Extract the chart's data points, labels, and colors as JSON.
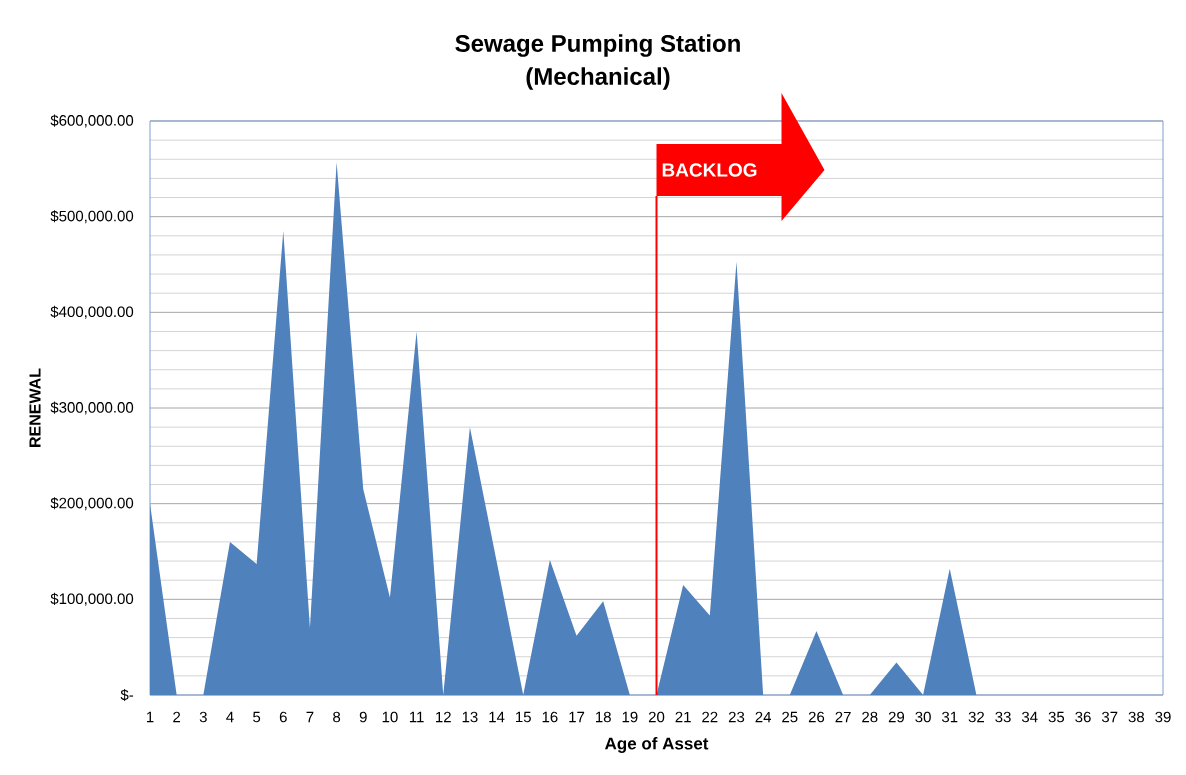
{
  "chart_data": {
    "type": "area",
    "title": "Sewage Pumping Station (Mechanical)",
    "xlabel": "Age of Asset",
    "ylabel": "RENEWAL",
    "x": [
      1,
      2,
      3,
      4,
      5,
      6,
      7,
      8,
      9,
      10,
      11,
      12,
      13,
      14,
      15,
      16,
      17,
      18,
      19,
      20,
      21,
      22,
      23,
      24,
      25,
      26,
      27,
      28,
      29,
      30,
      31,
      32,
      33,
      34,
      35,
      36,
      37,
      38,
      39
    ],
    "values": [
      200000,
      0,
      0,
      160000,
      137000,
      485000,
      70000,
      557000,
      215000,
      102000,
      380000,
      0,
      280000,
      140000,
      0,
      141000,
      62000,
      98000,
      0,
      0,
      115000,
      83000,
      453000,
      0,
      0,
      67000,
      0,
      0,
      34000,
      0,
      132000,
      0,
      0,
      0,
      0,
      0,
      0,
      0,
      0
    ],
    "color": "#4f81bd",
    "xlim": [
      1,
      39
    ],
    "ylim": [
      0,
      600000
    ],
    "xticks": [
      1,
      2,
      3,
      4,
      5,
      6,
      7,
      8,
      9,
      10,
      11,
      12,
      13,
      14,
      15,
      16,
      17,
      18,
      19,
      20,
      21,
      22,
      23,
      24,
      25,
      26,
      27,
      28,
      29,
      30,
      31,
      32,
      33,
      34,
      35,
      36,
      37,
      38,
      39
    ],
    "yticks": [
      {
        "value": 0,
        "label": "$-"
      },
      {
        "value": 20000,
        "label": null
      },
      {
        "value": 40000,
        "label": null
      },
      {
        "value": 60000,
        "label": null
      },
      {
        "value": 80000,
        "label": null
      },
      {
        "value": 100000,
        "label": "$100,000.00"
      },
      {
        "value": 120000,
        "label": null
      },
      {
        "value": 140000,
        "label": null
      },
      {
        "value": 160000,
        "label": null
      },
      {
        "value": 180000,
        "label": null
      },
      {
        "value": 200000,
        "label": "$200,000.00"
      },
      {
        "value": 220000,
        "label": null
      },
      {
        "value": 240000,
        "label": null
      },
      {
        "value": 260000,
        "label": null
      },
      {
        "value": 280000,
        "label": null
      },
      {
        "value": 300000,
        "label": "$300,000.00"
      },
      {
        "value": 320000,
        "label": null
      },
      {
        "value": 340000,
        "label": null
      },
      {
        "value": 360000,
        "label": null
      },
      {
        "value": 380000,
        "label": null
      },
      {
        "value": 400000,
        "label": "$400,000.00"
      },
      {
        "value": 420000,
        "label": null
      },
      {
        "value": 440000,
        "label": null
      },
      {
        "value": 460000,
        "label": null
      },
      {
        "value": 480000,
        "label": null
      },
      {
        "value": 500000,
        "label": "$500,000.00"
      },
      {
        "value": 520000,
        "label": null
      },
      {
        "value": 540000,
        "label": null
      },
      {
        "value": 560000,
        "label": null
      },
      {
        "value": 580000,
        "label": null
      },
      {
        "value": 600000,
        "label": "$600,000.00"
      }
    ],
    "grid": "y",
    "ref_lines": [
      {
        "axis": "x",
        "value": 20,
        "label": "BACKLOG",
        "color": "#ff0000"
      }
    ]
  }
}
